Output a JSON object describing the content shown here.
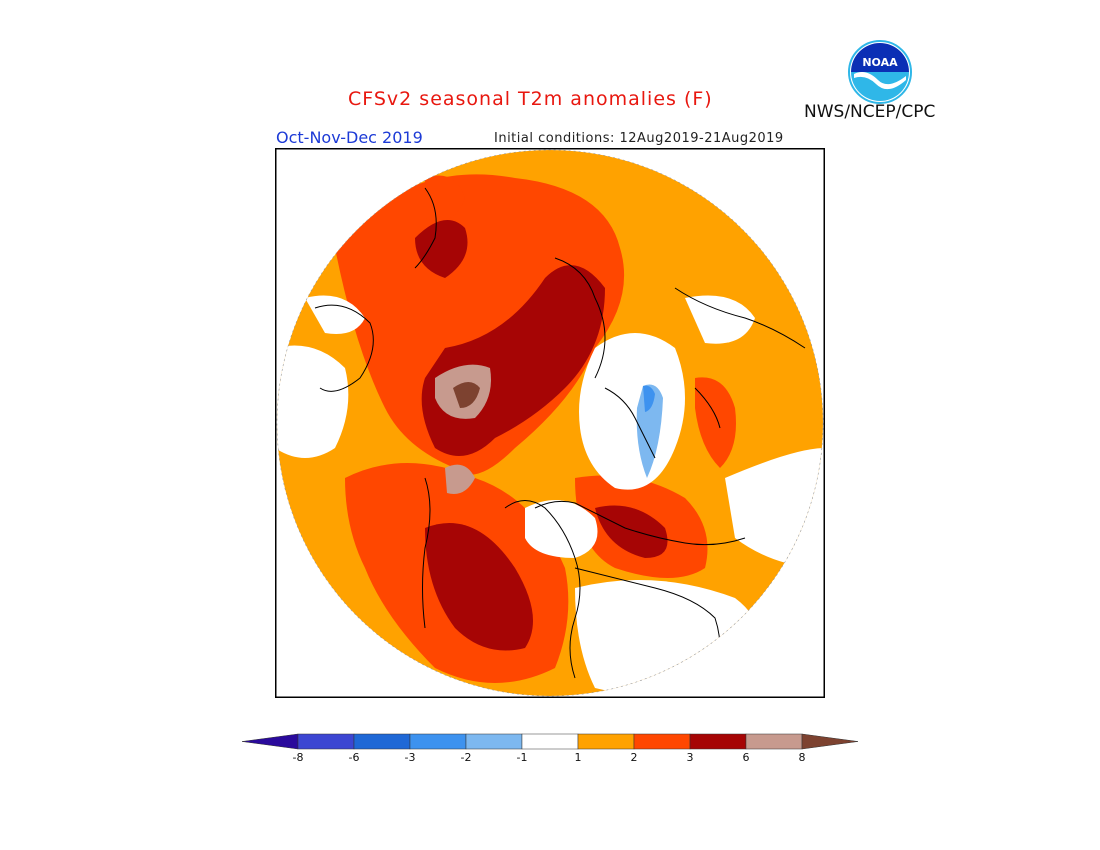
{
  "header": {
    "title": "CFSv2 seasonal T2m anomalies (F)",
    "season": "Oct-Nov-Dec 2019",
    "initial_conditions": "Initial conditions: 12Aug2019-21Aug2019",
    "agency": "NWS/NCEP/CPC",
    "logo_text": "NOAA"
  },
  "legend": {
    "labels": [
      "-8",
      "-6",
      "-3",
      "-2",
      "-1",
      "1",
      "2",
      "3",
      "6",
      "8"
    ],
    "colors": [
      "#2a0a9c",
      "#3c46d2",
      "#1f68d6",
      "#3d92ef",
      "#7db8f0",
      "#ffffff",
      "#ffa200",
      "#ff4700",
      "#a60505",
      "#c79a8e",
      "#7d4230"
    ]
  },
  "colors": {
    "title": "#e8170f",
    "season": "#1c3ad6",
    "map_frame": "#000000"
  }
}
